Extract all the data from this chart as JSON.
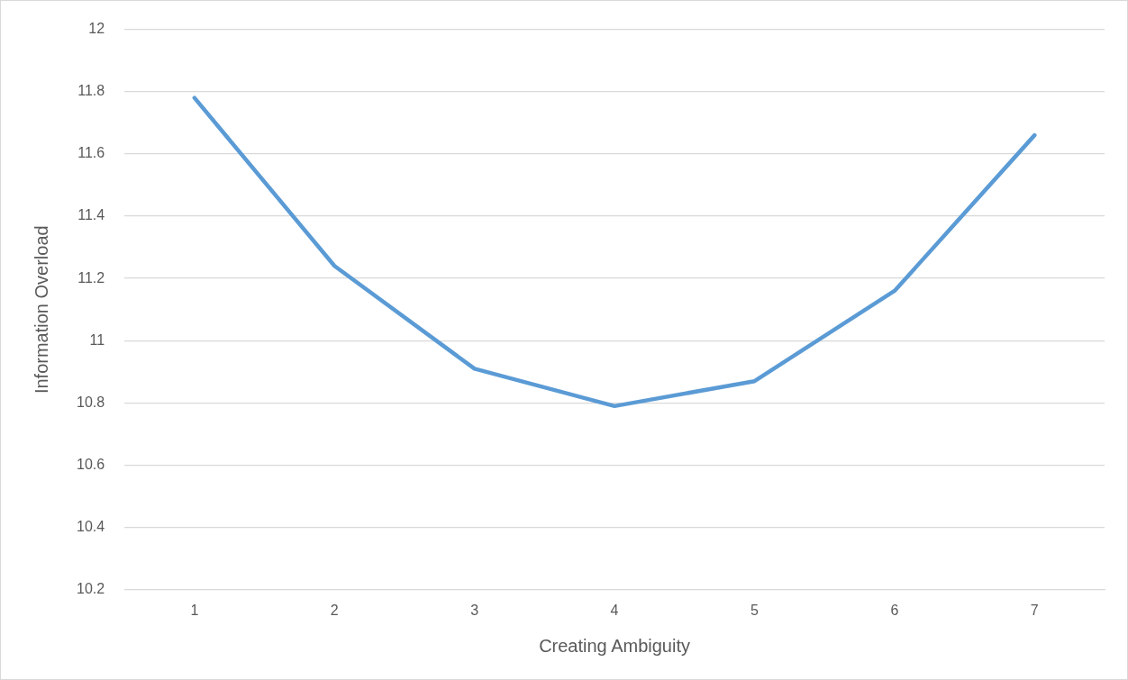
{
  "chart_data": {
    "type": "line",
    "xlabel": "Creating Ambiguity",
    "ylabel": "Information Overload",
    "categories": [
      "1",
      "2",
      "3",
      "4",
      "5",
      "6",
      "7"
    ],
    "series": [
      {
        "color": "#5b9bd5",
        "values": [
          11.78,
          11.24,
          10.91,
          10.79,
          10.87,
          11.16,
          11.66
        ]
      }
    ],
    "ylim": [
      10.2,
      12
    ],
    "yticks": [
      10.2,
      10.4,
      10.6,
      10.8,
      11,
      11.2,
      11.4,
      11.6,
      11.8,
      12
    ],
    "grid": "y",
    "legend": false,
    "marker": "none",
    "line_style": "solid"
  }
}
